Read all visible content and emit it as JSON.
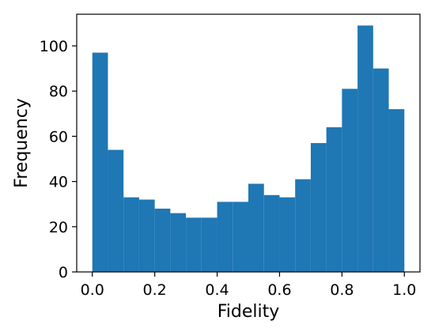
{
  "chart_data": {
    "type": "bar",
    "xlabel": "Fidelity",
    "ylabel": "Frequency",
    "xlim": [
      -0.05,
      1.05
    ],
    "ylim": [
      0,
      114
    ],
    "xticks": [
      0.0,
      0.2,
      0.4,
      0.6,
      0.8,
      1.0
    ],
    "xtick_labels": [
      "0.0",
      "0.2",
      "0.4",
      "0.6",
      "0.8",
      "1.0"
    ],
    "yticks": [
      0,
      20,
      40,
      60,
      80,
      100
    ],
    "ytick_labels": [
      "0",
      "20",
      "40",
      "60",
      "80",
      "100"
    ],
    "bin_edges": [
      0.0,
      0.05,
      0.1,
      0.15,
      0.2,
      0.25,
      0.3,
      0.35,
      0.4,
      0.45,
      0.5,
      0.55,
      0.6,
      0.65,
      0.7,
      0.75,
      0.8,
      0.85,
      0.9,
      0.95,
      1.0
    ],
    "values": [
      97,
      54,
      33,
      32,
      28,
      26,
      24,
      24,
      31,
      31,
      39,
      34,
      33,
      41,
      57,
      64,
      81,
      109,
      90,
      72
    ],
    "bar_color": "#1f77b4",
    "grid": false
  }
}
